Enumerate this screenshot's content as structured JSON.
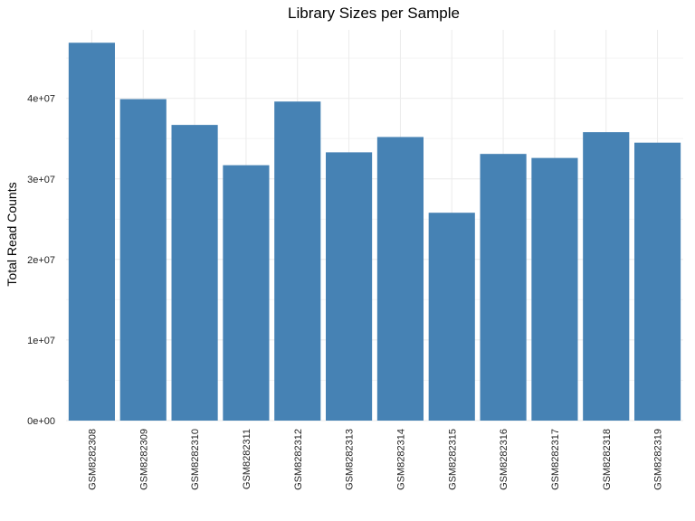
{
  "chart_data": {
    "type": "bar",
    "title": "Library Sizes per Sample",
    "xlabel": "",
    "ylabel": "Total Read Counts",
    "categories": [
      "GSM8282308",
      "GSM8282309",
      "GSM8282310",
      "GSM8282311",
      "GSM8282312",
      "GSM8282313",
      "GSM8282314",
      "GSM8282315",
      "GSM8282316",
      "GSM8282317",
      "GSM8282318",
      "GSM8282319"
    ],
    "values": [
      46900000,
      39900000,
      36700000,
      31700000,
      39600000,
      33300000,
      35200000,
      25800000,
      33100000,
      32600000,
      35800000,
      34500000
    ],
    "ylim": [
      0,
      48500000
    ],
    "yticks": [
      0,
      10000000,
      20000000,
      30000000,
      40000000
    ],
    "ytick_labels": [
      "0e+00",
      "1e+07",
      "2e+07",
      "3e+07",
      "4e+07"
    ],
    "bar_color": "#4682b4",
    "grid": true,
    "legend": "none"
  }
}
